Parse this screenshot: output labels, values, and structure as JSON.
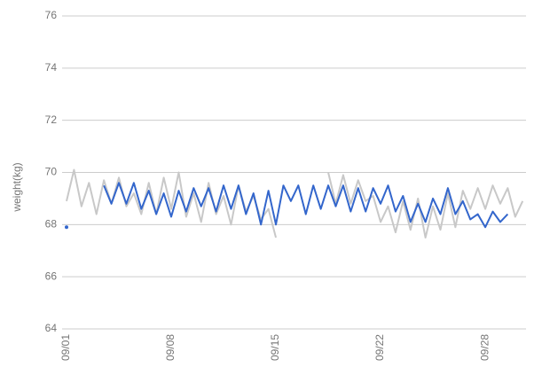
{
  "chart_data": {
    "type": "line",
    "y_label": "weight(kg)",
    "categories": [
      "09/01",
      null,
      null,
      null,
      null,
      null,
      null,
      null,
      null,
      null,
      null,
      null,
      null,
      null,
      "09/08",
      null,
      null,
      null,
      null,
      null,
      null,
      null,
      null,
      null,
      null,
      null,
      null,
      null,
      "09/15",
      null,
      null,
      null,
      null,
      null,
      null,
      null,
      null,
      null,
      null,
      null,
      null,
      null,
      "09/22",
      null,
      null,
      null,
      null,
      null,
      null,
      null,
      null,
      null,
      null,
      null,
      null,
      null,
      "09/28",
      null,
      null,
      null,
      null,
      null
    ],
    "series": [
      {
        "color": "#c8c8c8",
        "values": [
          68.9,
          70.1,
          68.7,
          69.6,
          68.4,
          69.7,
          68.8,
          69.8,
          68.7,
          69.2,
          68.4,
          69.6,
          68.4,
          69.8,
          68.6,
          70.0,
          68.3,
          69.2,
          68.1,
          69.6,
          68.4,
          69.1,
          68.0,
          69.5,
          68.5,
          69.1,
          68.2,
          68.6,
          67.5,
          null,
          null,
          null,
          null,
          null,
          null,
          70.0,
          68.8,
          69.9,
          68.8,
          69.7,
          68.9,
          69.1,
          68.1,
          68.7,
          67.7,
          68.9,
          67.8,
          69.0,
          67.5,
          68.7,
          67.8,
          69.2,
          67.9,
          69.3,
          68.6,
          69.4,
          68.6,
          69.5,
          68.8,
          69.4,
          68.3,
          68.9
        ]
      },
      {
        "color": "#3366cc",
        "values": [
          67.9,
          null,
          null,
          null,
          null,
          69.5,
          68.8,
          69.6,
          68.8,
          69.6,
          68.6,
          69.3,
          68.4,
          69.2,
          68.3,
          69.3,
          68.5,
          69.4,
          68.7,
          69.4,
          68.5,
          69.5,
          68.6,
          69.5,
          68.4,
          69.2,
          68.0,
          69.3,
          68.0,
          69.5,
          68.9,
          69.5,
          68.4,
          69.5,
          68.6,
          69.5,
          68.7,
          69.5,
          68.5,
          69.4,
          68.5,
          69.4,
          68.8,
          69.5,
          68.5,
          69.1,
          68.1,
          68.8,
          68.1,
          69.0,
          68.4,
          69.4,
          68.4,
          68.9,
          68.2,
          68.4,
          67.9,
          68.5,
          68.1,
          68.4,
          null,
          null
        ]
      }
    ],
    "ylim": [
      64,
      76
    ],
    "yticks": [
      64,
      66,
      68,
      70,
      72,
      74,
      76
    ],
    "grid": true
  }
}
